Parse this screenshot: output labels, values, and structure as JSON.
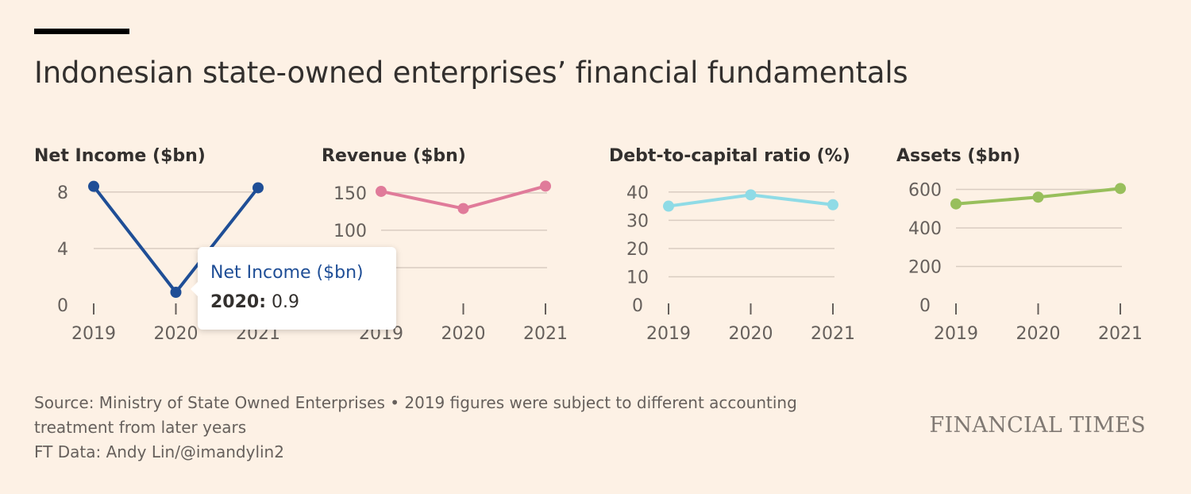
{
  "header": {
    "title": "Indonesian state-owned enterprises’ financial fundamentals"
  },
  "chart_data": [
    {
      "type": "line",
      "title": "Net Income ($bn)",
      "x": [
        "2019",
        "2020",
        "2021"
      ],
      "series": [
        {
          "values": [
            8.4,
            0.9,
            8.3
          ],
          "color": "#1f4e96"
        }
      ],
      "yticks": [
        0,
        4,
        8
      ],
      "ylim": [
        0,
        9
      ],
      "grid": true
    },
    {
      "type": "line",
      "title": "Revenue ($bn)",
      "x": [
        "2019",
        "2020",
        "2021"
      ],
      "series": [
        {
          "values": [
            152,
            129,
            159
          ],
          "color": "#e07b9a"
        }
      ],
      "yticks": [
        0,
        50,
        100,
        150
      ],
      "ylim": [
        0,
        170
      ],
      "grid": true
    },
    {
      "type": "line",
      "title": "Debt-to-capital ratio (%)",
      "x": [
        "2019",
        "2020",
        "2021"
      ],
      "series": [
        {
          "values": [
            35,
            39,
            35.5
          ],
          "color": "#8fdbe6"
        }
      ],
      "yticks": [
        0,
        10,
        20,
        30,
        40
      ],
      "ylim": [
        0,
        45
      ],
      "grid": true
    },
    {
      "type": "line",
      "title": "Assets ($bn)",
      "x": [
        "2019",
        "2020",
        "2021"
      ],
      "series": [
        {
          "values": [
            525,
            560,
            605
          ],
          "color": "#98bf5c"
        }
      ],
      "yticks": [
        0,
        200,
        400,
        600
      ],
      "ylim": [
        0,
        660
      ],
      "grid": true
    }
  ],
  "tooltip": {
    "title": "Net Income ($bn)",
    "year": "2020:",
    "value": "0.9"
  },
  "footer": {
    "source": "Source: Ministry of State Owned Enterprises • 2019 figures were subject to different accounting treatment from later years",
    "credit": "FT Data: Andy Lin/@imandylin2"
  },
  "brand": "FINANCIAL TIMES",
  "colors": {
    "background": "#fdf1e5",
    "net_income": "#1f4e96",
    "revenue": "#e07b9a",
    "debt": "#8fdbe6",
    "assets": "#98bf5c"
  }
}
